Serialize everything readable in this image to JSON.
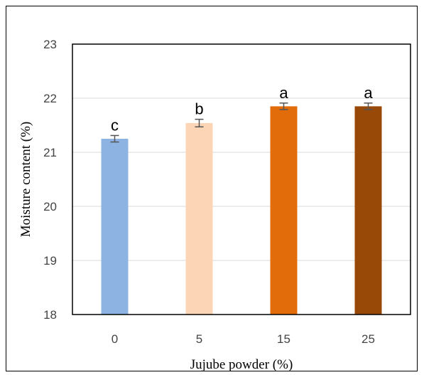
{
  "chart_data": {
    "type": "bar",
    "title": "",
    "xlabel": "Jujube powder (%)",
    "ylabel": "Moisture content (%)",
    "categories": [
      "0",
      "5",
      "15",
      "25"
    ],
    "values": [
      21.25,
      21.54,
      21.85,
      21.85
    ],
    "errors": [
      0.06,
      0.07,
      0.06,
      0.06
    ],
    "significance": [
      "c",
      "b",
      "a",
      "a"
    ],
    "colors": [
      "#8DB3E2",
      "#FBD5B5",
      "#E36C0A",
      "#984807"
    ],
    "ylim": [
      18,
      23
    ],
    "yticks": [
      "18",
      "19",
      "20",
      "21",
      "22",
      "23"
    ],
    "grid": true,
    "legend": "none"
  }
}
